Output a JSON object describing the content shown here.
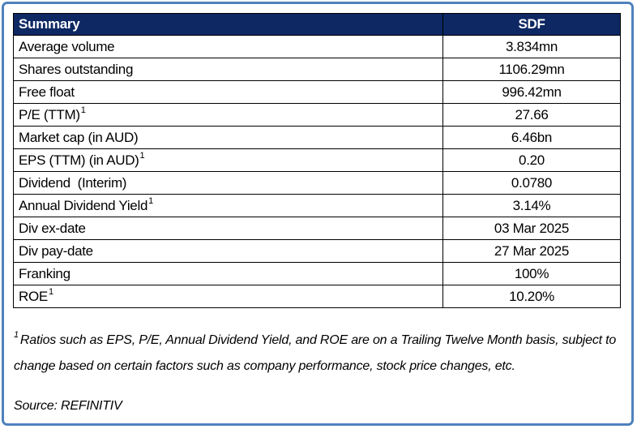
{
  "colors": {
    "header_bg": "#0e2864",
    "header_text": "#ffffff",
    "frame_border": "#4f81bd",
    "grid": "#000000",
    "text": "#000000"
  },
  "table": {
    "header": {
      "label": "Summary",
      "value": "SDF"
    },
    "rows": [
      {
        "label": "Average volume",
        "sup": "",
        "value": "3.834mn"
      },
      {
        "label": "Shares outstanding",
        "sup": "",
        "value": "1106.29mn"
      },
      {
        "label": "Free float",
        "sup": "",
        "value": "996.42mn"
      },
      {
        "label": "P/E (TTM)",
        "sup": "1",
        "value": "27.66"
      },
      {
        "label": "Market cap (in AUD)",
        "sup": "",
        "value": "6.46bn"
      },
      {
        "label": "EPS (TTM) (in AUD)",
        "sup": "1",
        "value": "0.20"
      },
      {
        "label": "Dividend  (Interim)",
        "sup": "",
        "value": "0.0780"
      },
      {
        "label": "Annual Dividend Yield",
        "sup": "1",
        "value": "3.14%"
      },
      {
        "label": "Div ex-date",
        "sup": "",
        "value": "03 Mar 2025"
      },
      {
        "label": "Div pay-date",
        "sup": "",
        "value": "27 Mar 2025"
      },
      {
        "label": "Franking",
        "sup": "",
        "value": "100%"
      },
      {
        "label": "ROE",
        "sup": "1",
        "value": "10.20%"
      }
    ]
  },
  "footnote": {
    "sup": "1",
    "text": "Ratios such as EPS, P/E, Annual Dividend Yield, and ROE are on a Trailing Twelve Month basis, subject to change based on certain factors such as company performance, stock price changes, etc."
  },
  "source": "Source: REFINITIV"
}
